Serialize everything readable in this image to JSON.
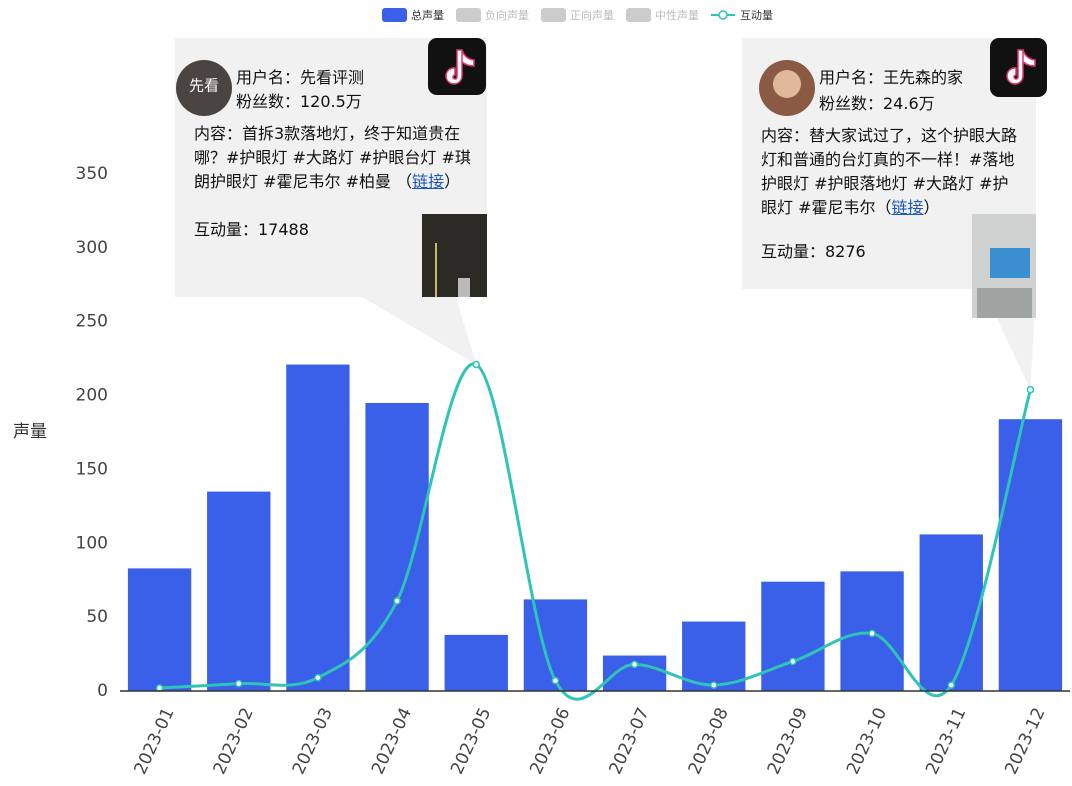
{
  "chart_data": {
    "type": "bar",
    "y_label": "声量",
    "categories": [
      "2023-01",
      "2023-02",
      "2023-03",
      "2023-04",
      "2023-05",
      "2023-06",
      "2023-07",
      "2023-08",
      "2023-09",
      "2023-10",
      "2023-11",
      "2023-12"
    ],
    "series": [
      {
        "name": "总声量",
        "type": "bar",
        "color": "#3a5fe8",
        "visible": true,
        "values": [
          83,
          135,
          221,
          195,
          38,
          62,
          24,
          47,
          74,
          81,
          106,
          184
        ]
      },
      {
        "name": "负向声量",
        "type": "bar",
        "color": "#cccccc",
        "visible": false,
        "values": null
      },
      {
        "name": "正向声量",
        "type": "bar",
        "color": "#cccccc",
        "visible": false,
        "values": null
      },
      {
        "name": "中性声量",
        "type": "bar",
        "color": "#cccccc",
        "visible": false,
        "values": null
      },
      {
        "name": "互动量",
        "type": "line",
        "color": "#2ec4b6",
        "visible": true,
        "values": [
          2,
          5,
          9,
          61,
          221,
          7,
          18,
          4,
          20,
          39,
          4,
          204
        ]
      }
    ],
    "ylim": [
      0,
      350
    ],
    "yticks": [
      0,
      50,
      100,
      150,
      200,
      250,
      300,
      350
    ],
    "annotations": [
      {
        "category_index": 4,
        "avatar_text": "先看",
        "user": "用户名：先看评测",
        "fans": "粉丝数：120.5万",
        "content": "内容：首拆3款落地灯，终于知道贵在哪？#护眼灯 #大路灯 #护眼台灯 #琪朗护眼灯 #霍尼韦尔 #柏曼 （",
        "link": "链接",
        "content_end": "）",
        "interaction": "互动量：17488"
      },
      {
        "category_index": 11,
        "user": "用户名：王先森的家",
        "fans": "粉丝数：24.6万",
        "content": "内容：替大家试过了，这个护眼大路灯和普通的台灯真的不一样！#落地护眼灯 #护眼落地灯 #大路灯 #护眼灯 #霍尼韦尔（",
        "link": "链接",
        "content_end": "）",
        "interaction": "互动量：8276"
      }
    ]
  }
}
